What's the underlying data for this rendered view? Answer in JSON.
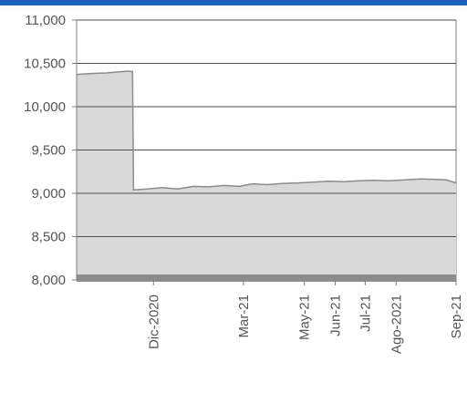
{
  "header": {
    "accent_color": "#1f5fbf"
  },
  "chart_data": {
    "type": "area",
    "title": "",
    "xlabel": "",
    "ylabel": "",
    "ylim": [
      8000,
      11000
    ],
    "yticks": [
      8000,
      8500,
      9000,
      9500,
      10000,
      10500,
      11000
    ],
    "ytick_labels": [
      "8,000",
      "8,500",
      "9,000",
      "9,500",
      "10,000",
      "10,500",
      "11,000"
    ],
    "xlim": [
      "2020-09-15",
      "2021-09-30"
    ],
    "xticks": [
      {
        "label": "Dic-2020",
        "x": "2020-12-01"
      },
      {
        "label": "Mar-21",
        "x": "2021-03-01"
      },
      {
        "label": "May-21",
        "x": "2021-05-01"
      },
      {
        "label": "Jun-21",
        "x": "2021-06-01"
      },
      {
        "label": "Jul-21",
        "x": "2021-07-01"
      },
      {
        "label": "Ago-2021",
        "x": "2021-08-01"
      },
      {
        "label": "Sep-21",
        "x": "2021-09-30"
      }
    ],
    "grid": {
      "horizontal": true,
      "vertical": false
    },
    "colors": {
      "fill": "#d9d9d9",
      "line": "#8c8c8c",
      "base": "#8c8c8c",
      "grid": "#4d4d4d",
      "axis": "#808080"
    },
    "series": [
      {
        "points": [
          [
            "2020-09-15",
            10370
          ],
          [
            "2020-09-25",
            10380
          ],
          [
            "2020-10-05",
            10385
          ],
          [
            "2020-10-15",
            10390
          ],
          [
            "2020-10-25",
            10400
          ],
          [
            "2020-11-05",
            10410
          ],
          [
            "2020-11-10",
            10405
          ],
          [
            "2020-11-11",
            9040
          ],
          [
            "2020-11-25",
            9050
          ],
          [
            "2020-12-10",
            9065
          ],
          [
            "2020-12-25",
            9050
          ],
          [
            "2021-01-10",
            9080
          ],
          [
            "2021-01-25",
            9075
          ],
          [
            "2021-02-10",
            9090
          ],
          [
            "2021-02-25",
            9080
          ],
          [
            "2021-03-10",
            9110
          ],
          [
            "2021-03-25",
            9100
          ],
          [
            "2021-04-10",
            9115
          ],
          [
            "2021-04-25",
            9120
          ],
          [
            "2021-05-10",
            9130
          ],
          [
            "2021-05-25",
            9140
          ],
          [
            "2021-06-10",
            9135
          ],
          [
            "2021-06-25",
            9145
          ],
          [
            "2021-07-10",
            9150
          ],
          [
            "2021-07-25",
            9145
          ],
          [
            "2021-08-10",
            9155
          ],
          [
            "2021-08-25",
            9165
          ],
          [
            "2021-09-10",
            9160
          ],
          [
            "2021-09-20",
            9155
          ],
          [
            "2021-09-30",
            9120
          ]
        ]
      }
    ]
  }
}
